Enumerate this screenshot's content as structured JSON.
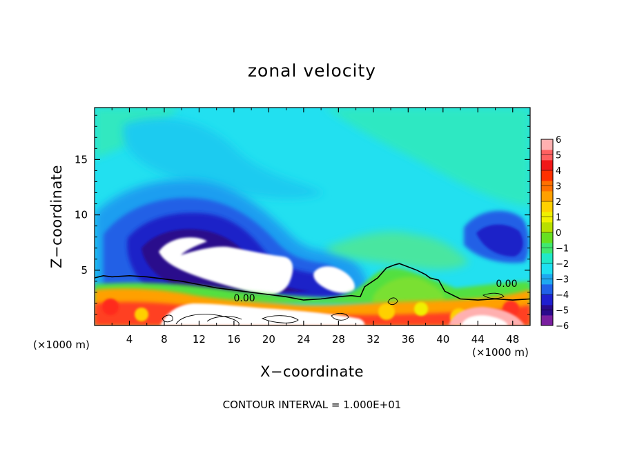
{
  "chart_data": {
    "type": "heatmap",
    "title": "zonal velocity",
    "xlabel": "X−coordinate",
    "ylabel": "Z−coordinate",
    "x_units_left": "(×1000 m)",
    "x_units_right": "(×1000 m)",
    "footer": "CONTOUR INTERVAL = 1.000E+01",
    "xlim": [
      0,
      50
    ],
    "ylim": [
      0,
      19.7
    ],
    "x_ticks": [
      4,
      8,
      12,
      16,
      20,
      24,
      28,
      32,
      36,
      40,
      44,
      48
    ],
    "y_ticks": [
      5,
      10,
      15
    ],
    "colorbar": {
      "range": [
        -6,
        6
      ],
      "labels": [
        "6",
        "5",
        "4",
        "3",
        "2",
        "1",
        "0",
        "−1",
        "−2",
        "−3",
        "−4",
        "−5",
        "−6"
      ],
      "colors": [
        "#7a1fa0",
        "#2a0a8c",
        "#1f1fd0",
        "#2060e8",
        "#1ea8f0",
        "#1ee0f0",
        "#20e8c8",
        "#40e870",
        "#66e020",
        "#b8e000",
        "#f0f000",
        "#ffd000",
        "#ffa000",
        "#ff7000",
        "#ff3000",
        "#f01818",
        "#ff6060",
        "#ffb0b0"
      ]
    },
    "contour_labels": [
      {
        "text": "0.00",
        "x": 17.2,
        "z": 2.5
      },
      {
        "text": "0.00",
        "x": 47.3,
        "z": 3.8
      }
    ],
    "zero_contour": {
      "x": [
        0,
        1,
        2,
        4,
        6,
        8,
        10,
        12,
        14,
        16,
        18,
        20,
        22,
        24,
        26,
        28,
        29.5,
        30.5,
        31,
        32.5,
        33.5,
        34.5,
        35,
        36,
        37,
        38,
        38.5,
        39.5,
        40.2,
        42,
        44,
        46,
        48,
        50
      ],
      "z": [
        4.3,
        4.5,
        4.4,
        4.5,
        4.4,
        4.2,
        4.0,
        3.7,
        3.4,
        3.2,
        3.0,
        2.8,
        2.6,
        2.3,
        2.4,
        2.6,
        2.7,
        2.6,
        3.5,
        4.3,
        5.2,
        5.5,
        5.6,
        5.3,
        5.0,
        4.6,
        4.3,
        4.1,
        3.1,
        2.4,
        2.3,
        2.4,
        2.3,
        2.4
      ]
    }
  }
}
